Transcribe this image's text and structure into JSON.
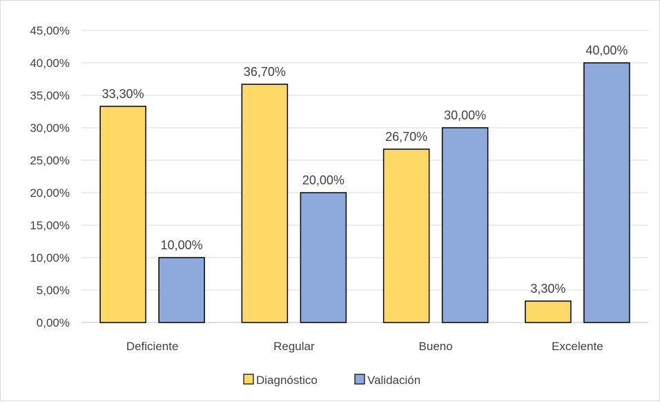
{
  "chart_data": {
    "type": "bar",
    "title": "",
    "xlabel": "",
    "ylabel": "",
    "categories": [
      "Deficiente",
      "Regular",
      "Bueno",
      "Excelente"
    ],
    "series": [
      {
        "name": "Diagnóstico",
        "color": "#FFD966",
        "values": [
          33.3,
          36.7,
          26.7,
          3.3
        ],
        "labels": [
          "33,30%",
          "36,70%",
          "26,70%",
          "3,30%"
        ]
      },
      {
        "name": "Validación",
        "color": "#8EA9DB",
        "values": [
          10.0,
          20.0,
          30.0,
          40.0
        ],
        "labels": [
          "10,00%",
          "20,00%",
          "30,00%",
          "40,00%"
        ]
      }
    ],
    "ylim": [
      0,
      45
    ],
    "yticks": [
      0,
      5,
      10,
      15,
      20,
      25,
      30,
      35,
      40,
      45
    ],
    "ytick_labels": [
      "0,00%",
      "5,00%",
      "10,00%",
      "15,00%",
      "20,00%",
      "25,00%",
      "30,00%",
      "35,00%",
      "40,00%",
      "45,00%"
    ],
    "grid": true,
    "legend_position": "bottom",
    "colors": {
      "gridline": "#d9d9d9",
      "axis": "#bfbfbf",
      "bar_outline": "#000000",
      "text": "#404040"
    }
  }
}
